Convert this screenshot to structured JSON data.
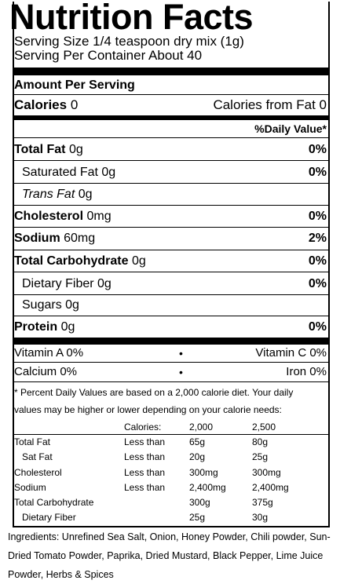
{
  "title": "Nutrition Facts",
  "serving_size": "Serving Size 1/4 teaspoon dry mix (1g)",
  "servings_per_container": "Serving Per Container About 40",
  "amount_per_serving": "Amount Per Serving",
  "calories": {
    "label": "Calories",
    "value": "0",
    "from_fat": "Calories from Fat 0"
  },
  "daily_value_header": "%Daily Value*",
  "nutrients": [
    {
      "label": "Total Fat",
      "amount": "0g",
      "dv": "0%"
    },
    {
      "label": "Saturated Fat",
      "amount": "0g",
      "dv": "0%"
    },
    {
      "label": "Trans Fat",
      "amount": "0g",
      "dv": ""
    },
    {
      "label": "Cholesterol",
      "amount": "0mg",
      "dv": "0%"
    },
    {
      "label": "Sodium",
      "amount": "60mg",
      "dv": "2%"
    },
    {
      "label": "Total Carbohydrate",
      "amount": "0g",
      "dv": "0%"
    },
    {
      "label": "Dietary Fiber",
      "amount": "0g",
      "dv": "0%"
    },
    {
      "label": "Sugars",
      "amount": "0g",
      "dv": ""
    },
    {
      "label": "Protein",
      "amount": "0g",
      "dv": "0%"
    }
  ],
  "vitamins": [
    {
      "left": "Vitamin A 0%",
      "right": "Vitamin C 0%"
    },
    {
      "left": "Calcium 0%",
      "right": "Iron 0%"
    }
  ],
  "bullet": "•",
  "footnote_line1": "* Percent Daily Values are based on a 2,000 calorie diet. Your daily",
  "footnote_line2": "values may be higher or lower depending on your calorie needs:",
  "dv_table": {
    "header": {
      "label": "Calories:",
      "col1": "2,000",
      "col2": "2,500"
    },
    "rows": [
      {
        "name": "Total Fat",
        "limit": "Less than",
        "col1": "65g",
        "col2": "80g"
      },
      {
        "name": "Sat Fat",
        "limit": "Less than",
        "col1": "20g",
        "col2": "25g"
      },
      {
        "name": "Cholesterol",
        "limit": "Less than",
        "col1": "300mg",
        "col2": "300mg"
      },
      {
        "name": "Sodium",
        "limit": "Less than",
        "col1": "2,400mg",
        "col2": "2,400mg"
      },
      {
        "name": "Total Carbohydrate",
        "limit": "",
        "col1": "300g",
        "col2": "375g"
      },
      {
        "name": "Dietary Fiber",
        "limit": "",
        "col1": "25g",
        "col2": "30g"
      }
    ]
  },
  "ingredients": "Ingredients: Unrefined Sea Salt, Onion, Honey Powder, Chili powder, Sun-Dried Tomato Powder, Paprika, Dried Mustard, Black Pepper, Lime Juice Powder, Herbs & Spices"
}
